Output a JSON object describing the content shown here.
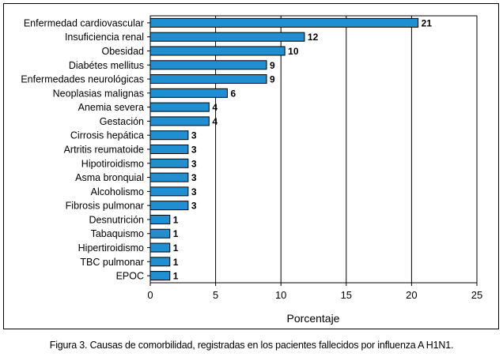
{
  "chart_data": {
    "type": "bar",
    "orientation": "horizontal",
    "categories": [
      "Enfermedad cardiovascular",
      "Insuficiencia renal",
      "Obesidad",
      "Diabétes mellitus",
      "Enfermedades neurológicas",
      "Neoplasias malignas",
      "Anemia severa",
      "Gestación",
      "Cirrosis hepática",
      "Artritis reumatoide",
      "Hipotiroidismo",
      "Asma bronquial",
      "Alcoholismo",
      "Fibrosis pulmonar",
      "Desnutrición",
      "Tabaquismo",
      "Hipertiroidismo",
      "TBC pulmonar",
      "EPOC"
    ],
    "values": [
      20.5,
      11.8,
      10.3,
      8.9,
      8.9,
      5.9,
      4.5,
      4.5,
      2.9,
      2.9,
      2.9,
      2.9,
      2.9,
      2.9,
      1.5,
      1.5,
      1.5,
      1.5,
      1.5
    ],
    "value_labels": [
      "21",
      "12",
      "10",
      "9",
      "9",
      "6",
      "4",
      "4",
      "3",
      "3",
      "3",
      "3",
      "3",
      "3",
      "1",
      "1",
      "1",
      "1",
      "1"
    ],
    "xlabel": "Porcentaje",
    "xlim": [
      0,
      25
    ],
    "xticks": [
      "0",
      "5",
      "10",
      "15",
      "20",
      "25"
    ],
    "grid": "vertical",
    "bar_color": "#1f8fd2"
  },
  "caption": "Figura 3. Causas de comorbilidad, registradas en los pacientes fallecidos por influenza A H1N1."
}
